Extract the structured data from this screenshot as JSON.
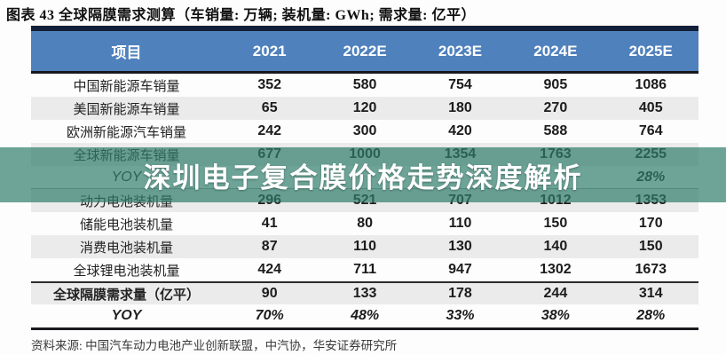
{
  "title": "图表 43 全球隔膜需求测算（车销量: 万辆; 装机量: GWh; 需求量: 亿平）",
  "watermark": {
    "text": "深圳电子复合膜价格走势深度解析"
  },
  "source": "资料来源: 中国汽车动力电池产业创新联盟，中汽协，华安证券研究所",
  "colors": {
    "header_bg": "#4f81bd",
    "header_text": "#ffffff",
    "dark_border": "#13203a",
    "shaded_row": "#ebebeb",
    "watermark_band": "rgba(48,126,108,0.70)",
    "watermark_text": "#ffffff"
  },
  "chart_data": {
    "type": "table",
    "title": "图表 43 全球隔膜需求测算（车销量: 万辆; 装机量: GWh; 需求量: 亿平）",
    "columns": [
      "项目",
      "2021",
      "2022E",
      "2023E",
      "2024E",
      "2025E"
    ],
    "rows": [
      {
        "label": "中国新能源车销量",
        "values": [
          "352",
          "580",
          "754",
          "905",
          "1086"
        ]
      },
      {
        "label": "美国新能源车销量",
        "values": [
          "65",
          "120",
          "180",
          "270",
          "405"
        ]
      },
      {
        "label": "欧洲新能源汽车销量",
        "values": [
          "242",
          "300",
          "420",
          "588",
          "764"
        ]
      },
      {
        "label": "全球新能源车销量",
        "values": [
          "677",
          "1000",
          "1354",
          "1763",
          "2255"
        ]
      },
      {
        "label": "YOY",
        "values": [
          "",
          "",
          "",
          "",
          "28%"
        ]
      },
      {
        "label": "动力电池装机量",
        "values": [
          "296",
          "521",
          "707",
          "1012",
          "1353"
        ]
      },
      {
        "label": "储能电池装机量",
        "values": [
          "41",
          "80",
          "110",
          "150",
          "170"
        ]
      },
      {
        "label": "消费电池装机量",
        "values": [
          "87",
          "110",
          "130",
          "140",
          "150"
        ]
      },
      {
        "label": "全球锂电池装机量",
        "values": [
          "424",
          "711",
          "947",
          "1302",
          "1673"
        ]
      },
      {
        "label": "全球隔膜需求量（亿平）",
        "values": [
          "90",
          "133",
          "178",
          "244",
          "314"
        ]
      },
      {
        "label": "YOY",
        "values": [
          "70%",
          "48%",
          "33%",
          "38%",
          "28%"
        ]
      }
    ]
  }
}
